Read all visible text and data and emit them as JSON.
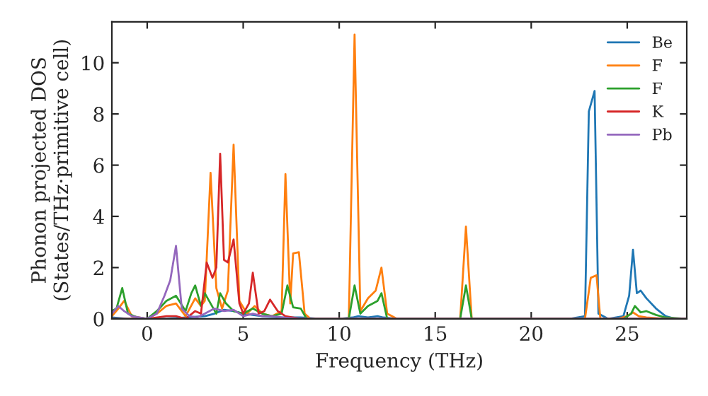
{
  "chart_data": {
    "type": "line",
    "xlabel": "Frequency (THz)",
    "ylabel": "Phonon projected DOS\n(States/THz·primitive cell)",
    "xlim": [
      -1.84,
      28.1
    ],
    "ylim": [
      0,
      11.6
    ],
    "xticks": [
      0,
      5,
      10,
      15,
      20,
      25
    ],
    "yticks": [
      0,
      2,
      4,
      6,
      8,
      10
    ],
    "grid": false,
    "legend": "top right",
    "marker": "none",
    "line_style": "solid",
    "series": [
      {
        "name": "Be",
        "color": "#1f77b4",
        "x": [
          -1.84,
          -1,
          0,
          1,
          2,
          3,
          3.5,
          4,
          4.5,
          5,
          6,
          7,
          8,
          9,
          10,
          10.7,
          11,
          11.5,
          12,
          12.3,
          13,
          16,
          17,
          22,
          22.8,
          23.0,
          23.3,
          23.5,
          24,
          24.8,
          25.1,
          25.3,
          25.5,
          25.7,
          26,
          26.5,
          27,
          27.5,
          28.1
        ],
        "values": [
          0.05,
          0,
          0,
          0,
          0.05,
          0.1,
          0.2,
          0.35,
          0.3,
          0.2,
          0.1,
          0.05,
          0.05,
          0,
          0,
          0.05,
          0.1,
          0.05,
          0.1,
          0.05,
          0,
          0,
          0,
          0,
          0.1,
          8.1,
          8.9,
          0.2,
          0,
          0.1,
          0.9,
          2.7,
          1.0,
          1.1,
          0.8,
          0.4,
          0.1,
          0,
          0
        ]
      },
      {
        "name": "F",
        "color": "#ff7f0e",
        "x": [
          -1.84,
          -1.5,
          -1.2,
          -0.8,
          0,
          0.5,
          1,
          1.5,
          2,
          2.5,
          2.8,
          3.0,
          3.3,
          3.6,
          3.9,
          4.2,
          4.5,
          4.8,
          5.2,
          5.6,
          6,
          6.5,
          7,
          7.2,
          7.45,
          7.6,
          7.9,
          8.2,
          8.5,
          10,
          10.5,
          10.8,
          11.1,
          11.5,
          11.9,
          12.2,
          12.5,
          13,
          16.3,
          16.6,
          16.9,
          22.8,
          23.1,
          23.4,
          23.6,
          24.5,
          25.0,
          25.3,
          25.6,
          26,
          27,
          28.1
        ],
        "values": [
          0.1,
          0.4,
          0.7,
          0.1,
          0,
          0.2,
          0.5,
          0.6,
          0.1,
          0.8,
          0.5,
          0.7,
          5.7,
          1.2,
          0.4,
          1.1,
          6.8,
          0.7,
          0.2,
          0.5,
          0.2,
          0.1,
          0.3,
          5.65,
          0.6,
          2.55,
          2.6,
          0.2,
          0,
          0,
          0,
          11.1,
          0.3,
          0.8,
          1.1,
          2.0,
          0.2,
          0,
          0,
          3.6,
          0,
          0,
          1.6,
          1.7,
          0,
          0,
          0.1,
          0.25,
          0.1,
          0.05,
          0,
          0
        ]
      },
      {
        "name": "F",
        "color": "#2ca02c",
        "x": [
          -1.84,
          -1.6,
          -1.3,
          -1.0,
          -0.5,
          0,
          0.5,
          1,
          1.5,
          2,
          2.3,
          2.5,
          2.8,
          3.0,
          3.3,
          3.6,
          3.8,
          4.1,
          4.5,
          5,
          5.5,
          6,
          6.5,
          7,
          7.3,
          7.6,
          8,
          8.3,
          10.5,
          10.8,
          11.1,
          11.5,
          12.0,
          12.2,
          12.5,
          16.3,
          16.6,
          16.9,
          24.8,
          25.2,
          25.4,
          25.7,
          26,
          26.5,
          27,
          28.1
        ],
        "values": [
          0.3,
          0.4,
          1.2,
          0.2,
          0.05,
          0,
          0.3,
          0.7,
          0.9,
          0.3,
          1.0,
          1.3,
          0.5,
          1.0,
          0.6,
          0.2,
          1.0,
          0.6,
          0.3,
          0.2,
          0.4,
          0.2,
          0.1,
          0.2,
          1.3,
          0.45,
          0.4,
          0,
          0,
          1.3,
          0.2,
          0.5,
          0.7,
          1.0,
          0,
          0,
          1.3,
          0,
          0,
          0.2,
          0.5,
          0.25,
          0.3,
          0.15,
          0.05,
          0
        ]
      },
      {
        "name": "K",
        "color": "#d62728",
        "x": [
          -1.84,
          -1,
          0,
          1,
          1.5,
          2,
          2.5,
          2.8,
          3.1,
          3.4,
          3.6,
          3.8,
          4.0,
          4.2,
          4.5,
          4.8,
          5.0,
          5.3,
          5.5,
          5.8,
          6.1,
          6.4,
          6.8,
          7.2,
          8,
          10,
          28.1
        ],
        "values": [
          0,
          0,
          0,
          0.1,
          0.1,
          0,
          0.3,
          0.2,
          2.2,
          1.6,
          2.0,
          6.45,
          2.3,
          2.2,
          3.1,
          0.6,
          0.2,
          0.6,
          1.8,
          0.2,
          0.3,
          0.75,
          0.3,
          0.1,
          0,
          0,
          0
        ]
      },
      {
        "name": "Pb",
        "color": "#9467bd",
        "x": [
          -1.84,
          -1.5,
          -1.2,
          -0.8,
          0,
          0.5,
          0.9,
          1.2,
          1.5,
          1.8,
          2.2,
          2.6,
          3,
          3.5,
          4,
          4.5,
          5,
          5.5,
          6,
          6.5,
          7,
          8,
          9,
          28.1
        ],
        "values": [
          0.2,
          0.5,
          0.3,
          0.1,
          0,
          0.2,
          0.9,
          1.5,
          2.85,
          0.4,
          0.1,
          0.05,
          0.2,
          0.4,
          0.3,
          0.35,
          0.1,
          0.2,
          0.1,
          0.1,
          0.05,
          0,
          0,
          0
        ]
      }
    ]
  }
}
